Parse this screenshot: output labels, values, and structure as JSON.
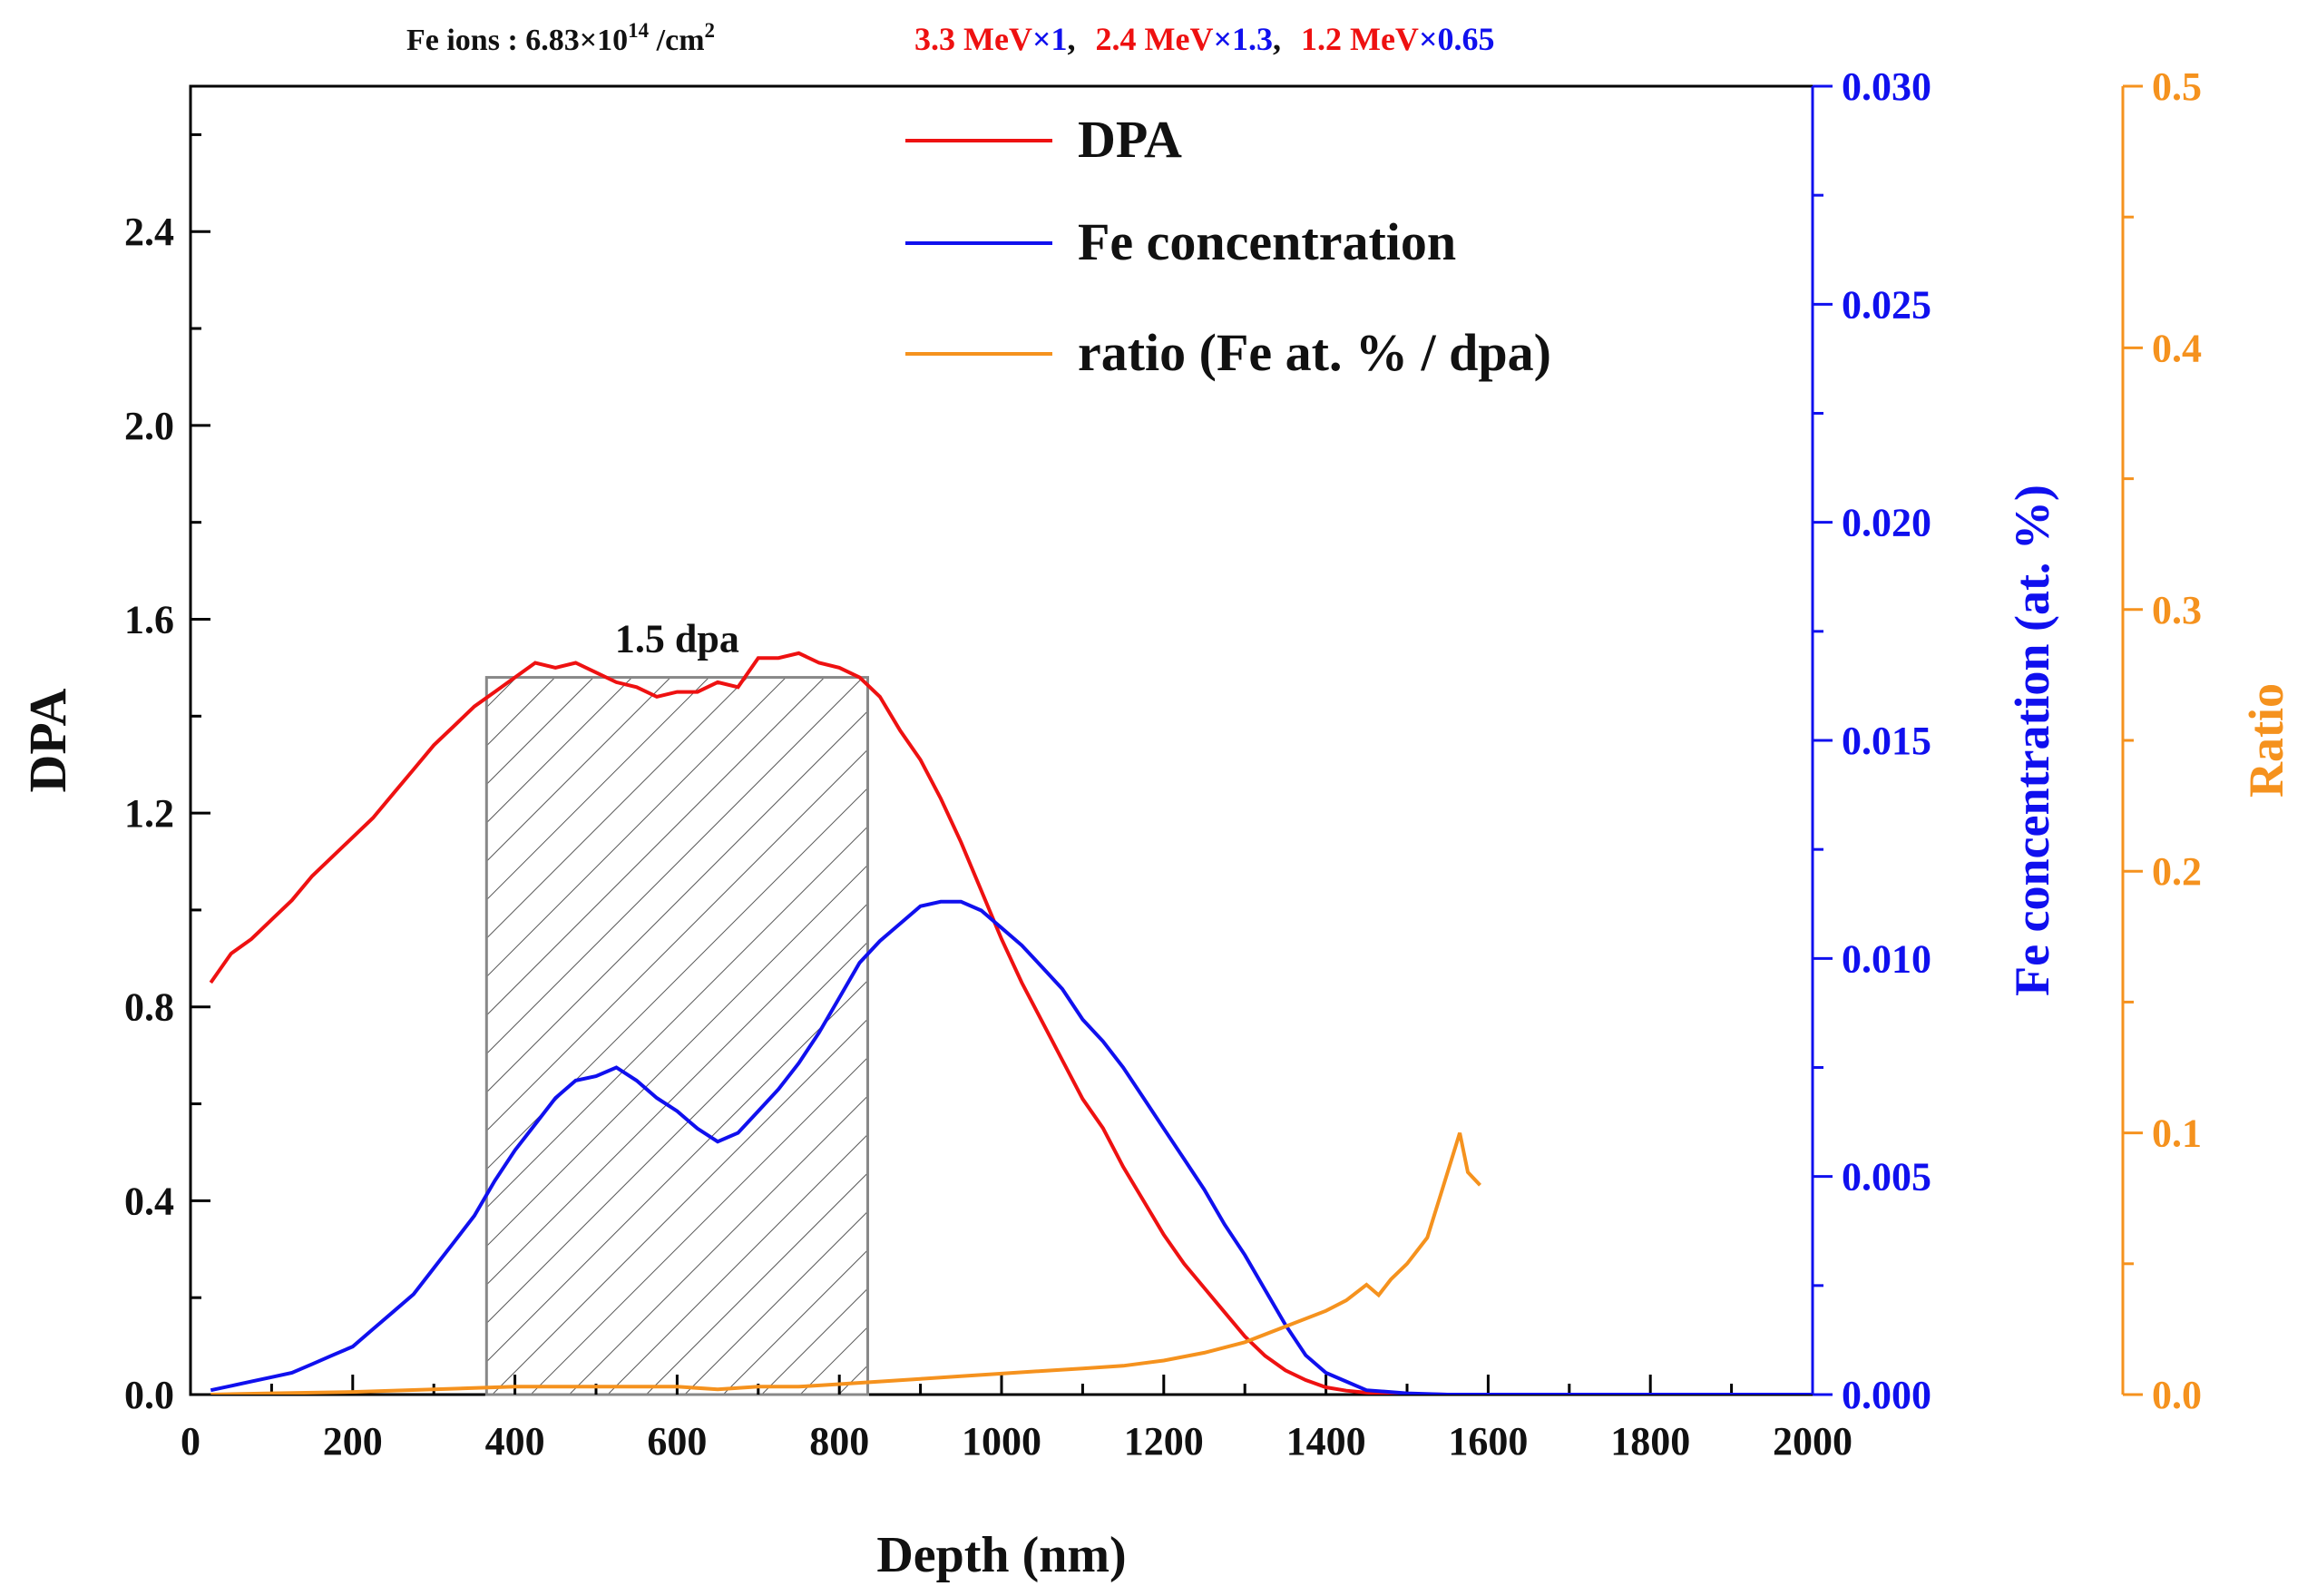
{
  "chart_data": {
    "type": "line",
    "header": {
      "prefix": "Fe ions : 6.83×10",
      "exponent": "14",
      "unit_before": " /cm",
      "unit_exponent": "2",
      "energies": [
        {
          "energy": "3.3 MeV",
          "factor": "×1",
          "sep": ","
        },
        {
          "energy": "2.4 MeV",
          "factor": "×1.3",
          "sep": ","
        },
        {
          "energy": "1.2 MeV",
          "factor": "×0.65",
          "sep": ""
        }
      ]
    },
    "xlabel": "Depth (nm)",
    "xlim": [
      0,
      2000
    ],
    "xticks": [
      0,
      200,
      400,
      600,
      800,
      1000,
      1200,
      1400,
      1600,
      1800,
      2000
    ],
    "y_left": {
      "label": "DPA",
      "lim": [
        0,
        2.7
      ],
      "ticks": [
        "0.0",
        "0.4",
        "0.8",
        "1.2",
        "1.6",
        "2.0",
        "2.4"
      ],
      "color": "#000000"
    },
    "y_right1": {
      "label": "Fe concentration (at. %)",
      "lim": [
        0,
        0.03
      ],
      "ticks": [
        "0.000",
        "0.005",
        "0.010",
        "0.015",
        "0.020",
        "0.025",
        "0.030"
      ],
      "color": "#1010ee"
    },
    "y_right2": {
      "label": "Ratio",
      "lim": [
        0,
        0.5
      ],
      "ticks": [
        "0.0",
        "0.1",
        "0.2",
        "0.3",
        "0.4",
        "0.5"
      ],
      "color": "#f5921e"
    },
    "annotation": {
      "text": "1.5 dpa",
      "x_range": [
        365,
        835
      ],
      "y": 1.48
    },
    "legend_position": "top-center",
    "series": [
      {
        "name": "DPA",
        "axis": "left",
        "color": "#ee1111",
        "points": [
          [
            25,
            0.85
          ],
          [
            50,
            0.91
          ],
          [
            75,
            0.94
          ],
          [
            100,
            0.98
          ],
          [
            125,
            1.02
          ],
          [
            150,
            1.07
          ],
          [
            175,
            1.11
          ],
          [
            200,
            1.15
          ],
          [
            225,
            1.19
          ],
          [
            250,
            1.24
          ],
          [
            275,
            1.29
          ],
          [
            300,
            1.34
          ],
          [
            325,
            1.38
          ],
          [
            350,
            1.42
          ],
          [
            375,
            1.45
          ],
          [
            400,
            1.48
          ],
          [
            425,
            1.51
          ],
          [
            450,
            1.5
          ],
          [
            475,
            1.51
          ],
          [
            500,
            1.49
          ],
          [
            525,
            1.47
          ],
          [
            550,
            1.46
          ],
          [
            575,
            1.44
          ],
          [
            600,
            1.45
          ],
          [
            625,
            1.45
          ],
          [
            650,
            1.47
          ],
          [
            675,
            1.46
          ],
          [
            700,
            1.52
          ],
          [
            725,
            1.52
          ],
          [
            750,
            1.53
          ],
          [
            775,
            1.51
          ],
          [
            800,
            1.5
          ],
          [
            825,
            1.48
          ],
          [
            850,
            1.44
          ],
          [
            875,
            1.37
          ],
          [
            900,
            1.31
          ],
          [
            925,
            1.23
          ],
          [
            950,
            1.14
          ],
          [
            975,
            1.04
          ],
          [
            1000,
            0.94
          ],
          [
            1025,
            0.85
          ],
          [
            1050,
            0.77
          ],
          [
            1075,
            0.69
          ],
          [
            1100,
            0.61
          ],
          [
            1125,
            0.55
          ],
          [
            1150,
            0.47
          ],
          [
            1175,
            0.4
          ],
          [
            1200,
            0.33
          ],
          [
            1225,
            0.27
          ],
          [
            1250,
            0.22
          ],
          [
            1275,
            0.17
          ],
          [
            1300,
            0.12
          ],
          [
            1325,
            0.08
          ],
          [
            1350,
            0.05
          ],
          [
            1375,
            0.03
          ],
          [
            1400,
            0.015
          ],
          [
            1425,
            0.008
          ],
          [
            1450,
            0.004
          ],
          [
            1500,
            0.001
          ],
          [
            1550,
            0.0
          ],
          [
            2000,
            0.0
          ]
        ]
      },
      {
        "name": "Fe concentration",
        "axis": "right1",
        "color": "#1010ee",
        "points": [
          [
            25,
            0.0001
          ],
          [
            50,
            0.0002
          ],
          [
            75,
            0.0003
          ],
          [
            100,
            0.0004
          ],
          [
            125,
            0.0005
          ],
          [
            150,
            0.0007
          ],
          [
            175,
            0.0009
          ],
          [
            200,
            0.0011
          ],
          [
            225,
            0.0015
          ],
          [
            250,
            0.0019
          ],
          [
            275,
            0.0023
          ],
          [
            300,
            0.0029
          ],
          [
            325,
            0.0035
          ],
          [
            350,
            0.0041
          ],
          [
            375,
            0.0049
          ],
          [
            400,
            0.0056
          ],
          [
            425,
            0.0062
          ],
          [
            450,
            0.0068
          ],
          [
            475,
            0.0072
          ],
          [
            500,
            0.0073
          ],
          [
            525,
            0.0075
          ],
          [
            550,
            0.0072
          ],
          [
            575,
            0.0068
          ],
          [
            600,
            0.0065
          ],
          [
            625,
            0.0061
          ],
          [
            650,
            0.0058
          ],
          [
            675,
            0.006
          ],
          [
            700,
            0.0065
          ],
          [
            725,
            0.007
          ],
          [
            750,
            0.0076
          ],
          [
            775,
            0.0083
          ],
          [
            800,
            0.0091
          ],
          [
            825,
            0.0099
          ],
          [
            850,
            0.0104
          ],
          [
            875,
            0.0108
          ],
          [
            900,
            0.0112
          ],
          [
            925,
            0.0113
          ],
          [
            950,
            0.0113
          ],
          [
            975,
            0.0111
          ],
          [
            1000,
            0.0107
          ],
          [
            1025,
            0.0103
          ],
          [
            1050,
            0.0098
          ],
          [
            1075,
            0.0093
          ],
          [
            1100,
            0.0086
          ],
          [
            1125,
            0.0081
          ],
          [
            1150,
            0.0075
          ],
          [
            1175,
            0.0068
          ],
          [
            1200,
            0.0061
          ],
          [
            1225,
            0.0054
          ],
          [
            1250,
            0.0047
          ],
          [
            1275,
            0.0039
          ],
          [
            1300,
            0.0032
          ],
          [
            1325,
            0.0024
          ],
          [
            1350,
            0.0016
          ],
          [
            1375,
            0.0009
          ],
          [
            1400,
            0.0005
          ],
          [
            1425,
            0.0003
          ],
          [
            1450,
            0.0001
          ],
          [
            1500,
            3e-05
          ],
          [
            1550,
            0.0
          ],
          [
            2000,
            0.0
          ]
        ]
      },
      {
        "name": "ratio (Fe at. % / dpa)",
        "axis": "right2",
        "color": "#f5921e",
        "points": [
          [
            25,
            0.0
          ],
          [
            100,
            0.0005
          ],
          [
            200,
            0.001
          ],
          [
            300,
            0.002
          ],
          [
            400,
            0.003
          ],
          [
            500,
            0.003
          ],
          [
            600,
            0.003
          ],
          [
            650,
            0.002
          ],
          [
            700,
            0.003
          ],
          [
            750,
            0.003
          ],
          [
            800,
            0.004
          ],
          [
            850,
            0.005
          ],
          [
            900,
            0.006
          ],
          [
            950,
            0.007
          ],
          [
            1000,
            0.008
          ],
          [
            1050,
            0.009
          ],
          [
            1100,
            0.01
          ],
          [
            1150,
            0.011
          ],
          [
            1200,
            0.013
          ],
          [
            1250,
            0.016
          ],
          [
            1300,
            0.02
          ],
          [
            1350,
            0.026
          ],
          [
            1400,
            0.032
          ],
          [
            1425,
            0.036
          ],
          [
            1450,
            0.042
          ],
          [
            1465,
            0.038
          ],
          [
            1480,
            0.044
          ],
          [
            1500,
            0.05
          ],
          [
            1525,
            0.06
          ],
          [
            1540,
            0.075
          ],
          [
            1555,
            0.09
          ],
          [
            1565,
            0.1
          ],
          [
            1575,
            0.085
          ],
          [
            1590,
            0.08
          ]
        ]
      }
    ]
  }
}
